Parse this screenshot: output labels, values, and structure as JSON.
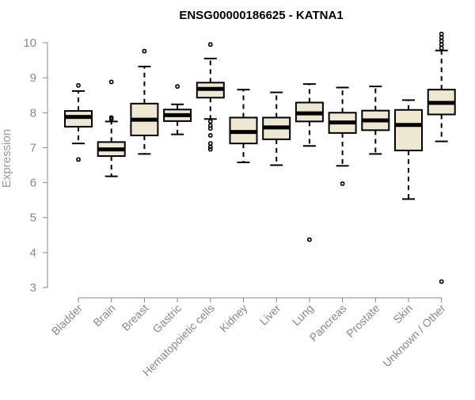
{
  "chart_data": {
    "type": "boxplot",
    "title": "ENSG00000186625 - KATNA1",
    "xlabel": "",
    "ylabel": "Expression",
    "ylim": [
      3,
      10
    ],
    "yticks": [
      3,
      4,
      5,
      6,
      7,
      8,
      9,
      10
    ],
    "box_fill": "#efe8d0",
    "box_stroke": "#000000",
    "groups": [
      {
        "name": "Bladder",
        "q1": 7.6,
        "median": 7.88,
        "q3": 8.05,
        "whisker_low": 7.12,
        "whisker_high": 8.62,
        "outliers": [
          8.78,
          6.66
        ]
      },
      {
        "name": "Brain",
        "q1": 6.76,
        "median": 6.95,
        "q3": 7.16,
        "whisker_low": 6.18,
        "whisker_high": 7.75,
        "outliers": [
          8.88,
          7.86,
          7.82
        ]
      },
      {
        "name": "Breast",
        "q1": 7.35,
        "median": 7.8,
        "q3": 8.26,
        "whisker_low": 6.82,
        "whisker_high": 9.32,
        "outliers": [
          9.76
        ]
      },
      {
        "name": "Gastric",
        "q1": 7.76,
        "median": 7.93,
        "q3": 8.09,
        "whisker_low": 7.38,
        "whisker_high": 8.24,
        "outliers": [
          8.75
        ]
      },
      {
        "name": "Hematopoietic cells",
        "q1": 8.43,
        "median": 8.68,
        "q3": 8.86,
        "whisker_low": 7.82,
        "whisker_high": 9.55,
        "outliers": [
          9.95,
          7.75,
          7.63,
          7.55,
          7.35,
          7.12,
          7.02,
          6.95
        ]
      },
      {
        "name": "Kidney",
        "q1": 7.12,
        "median": 7.45,
        "q3": 7.86,
        "whisker_low": 6.58,
        "whisker_high": 8.66,
        "outliers": []
      },
      {
        "name": "Liver",
        "q1": 7.24,
        "median": 7.58,
        "q3": 7.86,
        "whisker_low": 6.5,
        "whisker_high": 8.58,
        "outliers": []
      },
      {
        "name": "Lung",
        "q1": 7.75,
        "median": 7.98,
        "q3": 8.29,
        "whisker_low": 7.05,
        "whisker_high": 8.82,
        "outliers": [
          4.37
        ]
      },
      {
        "name": "Pancreas",
        "q1": 7.42,
        "median": 7.72,
        "q3": 8.0,
        "whisker_low": 6.48,
        "whisker_high": 8.72,
        "outliers": [
          5.97
        ]
      },
      {
        "name": "Prostate",
        "q1": 7.5,
        "median": 7.78,
        "q3": 8.06,
        "whisker_low": 6.82,
        "whisker_high": 8.75,
        "outliers": []
      },
      {
        "name": "Skin",
        "q1": 6.92,
        "median": 7.65,
        "q3": 8.08,
        "whisker_low": 5.53,
        "whisker_high": 8.36,
        "outliers": []
      },
      {
        "name": "Unknown / Other",
        "q1": 7.95,
        "median": 8.28,
        "q3": 8.66,
        "whisker_low": 7.18,
        "whisker_high": 9.78,
        "outliers": [
          10.25,
          10.15,
          10.05,
          9.95,
          9.85,
          3.17
        ]
      }
    ]
  }
}
